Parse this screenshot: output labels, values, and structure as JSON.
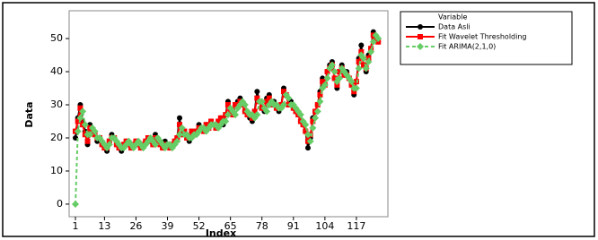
{
  "chart_data": {
    "type": "line",
    "x_label": "Index",
    "y_label": "Data",
    "legend_title": "Variable",
    "x": [
      1,
      2,
      3,
      4,
      5,
      6,
      7,
      8,
      9,
      10,
      11,
      12,
      13,
      14,
      15,
      16,
      17,
      18,
      19,
      20,
      21,
      22,
      23,
      24,
      25,
      26,
      27,
      28,
      29,
      30,
      31,
      32,
      33,
      34,
      35,
      36,
      37,
      38,
      39,
      40,
      41,
      42,
      43,
      44,
      45,
      46,
      47,
      48,
      49,
      50,
      51,
      52,
      53,
      54,
      55,
      56,
      57,
      58,
      59,
      60,
      61,
      62,
      63,
      64,
      65,
      66,
      67,
      68,
      69,
      70,
      71,
      72,
      73,
      74,
      75,
      76,
      77,
      78,
      79,
      80,
      81,
      82,
      83,
      84,
      85,
      86,
      87,
      88,
      89,
      90,
      91,
      92,
      93,
      94,
      95,
      96,
      97,
      98,
      99,
      100,
      101,
      102,
      103,
      104,
      105,
      106,
      107,
      108,
      109,
      110,
      111,
      112,
      113,
      114,
      115,
      116,
      117,
      118,
      119,
      120,
      121,
      122,
      123,
      124,
      125,
      126
    ],
    "series": [
      {
        "name": "Data Asli",
        "color": "#000000",
        "marker": "circle",
        "dashed": false,
        "values": [
          20,
          26,
          30,
          25,
          22,
          18,
          24,
          22,
          21,
          19,
          20,
          18,
          17,
          16,
          19,
          21,
          20,
          18,
          17,
          16,
          18,
          19,
          18,
          17,
          18,
          19,
          18,
          17,
          18,
          19,
          20,
          19,
          18,
          21,
          19,
          18,
          17,
          19,
          18,
          17,
          18,
          19,
          20,
          26,
          21,
          22,
          20,
          19,
          22,
          21,
          22,
          24,
          23,
          22,
          24,
          23,
          25,
          24,
          23,
          25,
          26,
          24,
          27,
          31,
          28,
          27,
          30,
          31,
          32,
          30,
          28,
          27,
          26,
          25,
          28,
          34,
          31,
          29,
          28,
          32,
          33,
          30,
          31,
          29,
          28,
          30,
          35,
          33,
          30,
          31,
          29,
          28,
          27,
          25,
          24,
          22,
          17,
          20,
          26,
          28,
          30,
          34,
          38,
          36,
          40,
          42,
          43,
          38,
          35,
          40,
          42,
          39,
          40,
          38,
          36,
          33,
          37,
          44,
          48,
          42,
          40,
          45,
          47,
          52,
          50,
          49
        ]
      },
      {
        "name": "Fit Wavelet Thresholding",
        "color": "#ff0000",
        "marker": "square",
        "dashed": false,
        "values": [
          22,
          25,
          29,
          24,
          21,
          19,
          23,
          22,
          21,
          20,
          20,
          18,
          17,
          17,
          19,
          20,
          20,
          18,
          17,
          17,
          18,
          19,
          18,
          17,
          18,
          19,
          18,
          17,
          18,
          19,
          20,
          19,
          18,
          20,
          19,
          18,
          17,
          18,
          18,
          17,
          18,
          19,
          20,
          24,
          21,
          22,
          20,
          20,
          22,
          21,
          22,
          23,
          23,
          22,
          24,
          23,
          25,
          24,
          23,
          25,
          26,
          25,
          27,
          30,
          28,
          27,
          30,
          30,
          31,
          30,
          28,
          27,
          27,
          26,
          28,
          32,
          31,
          29,
          29,
          31,
          32,
          30,
          30,
          29,
          29,
          30,
          34,
          33,
          30,
          30,
          29,
          28,
          27,
          25,
          24,
          22,
          19,
          21,
          25,
          28,
          30,
          33,
          37,
          36,
          40,
          41,
          42,
          38,
          36,
          40,
          41,
          39,
          39,
          38,
          36,
          34,
          37,
          43,
          46,
          42,
          41,
          44,
          47,
          51,
          50,
          49
        ]
      },
      {
        "name": "Fit ARIMA(2,1,0)",
        "color": "#66cc66",
        "marker": "diamond",
        "dashed": true,
        "values": [
          0,
          22,
          26,
          28,
          24,
          21,
          21,
          23,
          22,
          20,
          20,
          19,
          18,
          17,
          18,
          20,
          20,
          19,
          18,
          17,
          17,
          18,
          19,
          18,
          17,
          18,
          19,
          18,
          17,
          18,
          19,
          20,
          19,
          18,
          20,
          19,
          18,
          17,
          18,
          18,
          17,
          18,
          19,
          21,
          23,
          21,
          21,
          20,
          20,
          21,
          21,
          22,
          23,
          23,
          22,
          23,
          24,
          24,
          24,
          23,
          24,
          25,
          25,
          27,
          29,
          28,
          27,
          29,
          30,
          31,
          30,
          28,
          27,
          27,
          26,
          27,
          31,
          31,
          29,
          28,
          30,
          31,
          30,
          30,
          29,
          29,
          30,
          33,
          32,
          30,
          30,
          29,
          28,
          27,
          25,
          24,
          21,
          19,
          23,
          26,
          28,
          31,
          35,
          36,
          38,
          41,
          42,
          40,
          37,
          38,
          41,
          40,
          39,
          38,
          37,
          35,
          35,
          41,
          45,
          44,
          41,
          43,
          46,
          49,
          51,
          50
        ]
      }
    ],
    "xlim": [
      -1.6,
      130
    ],
    "ylim": [
      -3.8,
      58.4
    ],
    "xticks": [
      1,
      13,
      26,
      39,
      52,
      65,
      78,
      91,
      104,
      117
    ],
    "yticks": [
      0,
      10,
      20,
      30,
      40,
      50
    ],
    "legend_position": "right"
  }
}
